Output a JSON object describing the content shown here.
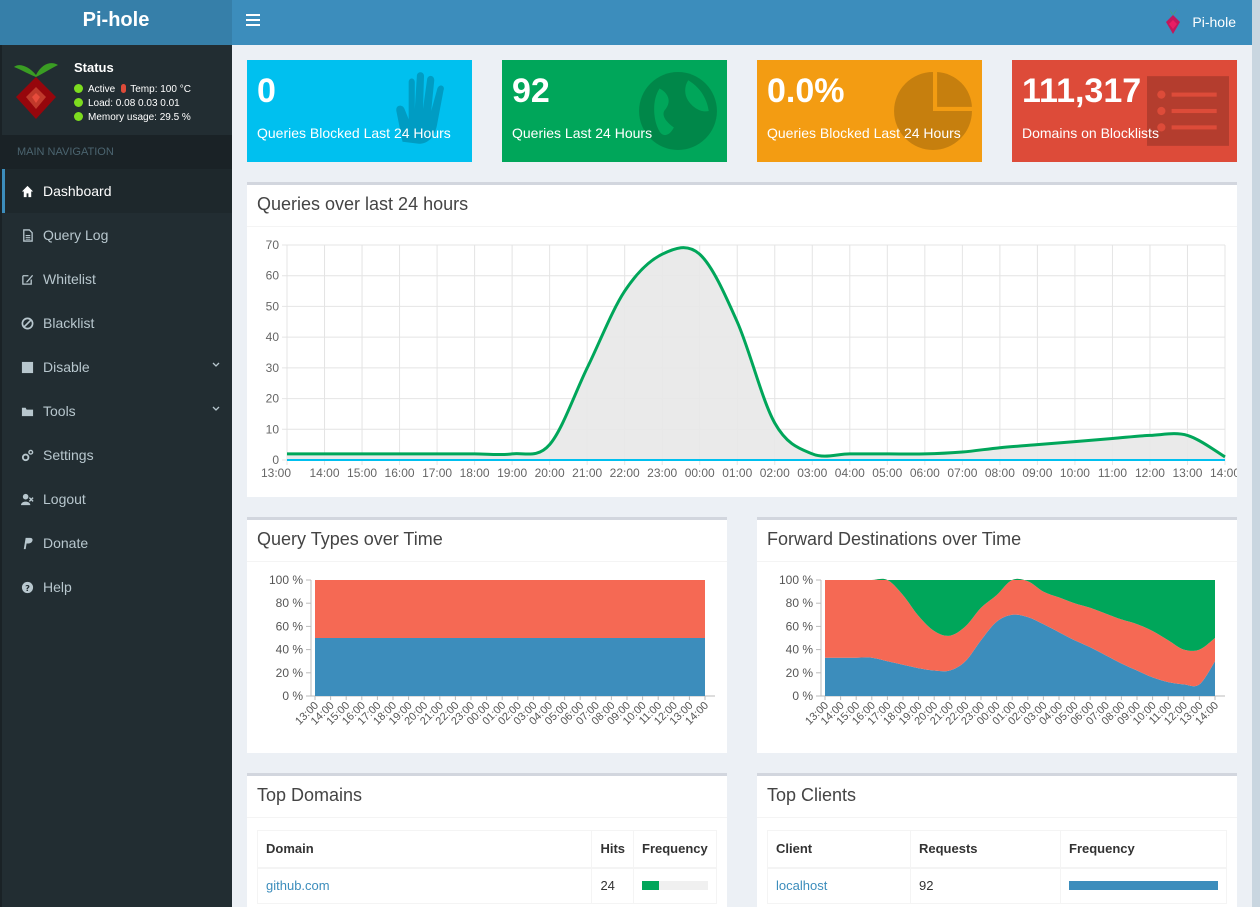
{
  "app": {
    "title": "Pi-hole",
    "brand_name": "Pi-hole"
  },
  "status": {
    "title": "Status",
    "active": "Active",
    "temp": "Temp: 100 °C",
    "load": "Load:  0.08  0.03  0.01",
    "memory": "Memory usage:  29.5 %"
  },
  "sidebar": {
    "header": "MAIN NAVIGATION",
    "items": [
      {
        "label": "Dashboard",
        "icon": "home-icon",
        "active": true
      },
      {
        "label": "Query Log",
        "icon": "file-icon"
      },
      {
        "label": "Whitelist",
        "icon": "edit-icon"
      },
      {
        "label": "Blacklist",
        "icon": "ban-icon"
      },
      {
        "label": "Disable",
        "icon": "stop-icon",
        "expandable": true
      },
      {
        "label": "Tools",
        "icon": "folder-icon",
        "expandable": true
      },
      {
        "label": "Settings",
        "icon": "gears-icon"
      },
      {
        "label": "Logout",
        "icon": "user-times-icon"
      },
      {
        "label": "Donate",
        "icon": "paypal-icon"
      },
      {
        "label": "Help",
        "icon": "question-icon"
      }
    ]
  },
  "stats": [
    {
      "value": "0",
      "label": "Queries Blocked Last 24 Hours",
      "color": "#00c0ef",
      "icon": "hand-icon"
    },
    {
      "value": "92",
      "label": "Queries Last 24 Hours",
      "color": "#00a65a",
      "icon": "globe-icon"
    },
    {
      "value": "0.0%",
      "label": "Queries Blocked Last 24 Hours",
      "color": "#f39c12",
      "icon": "pie-chart-icon"
    },
    {
      "value": "111,317",
      "label": "Domains on Blocklists",
      "color": "#dd4b39",
      "icon": "list-icon"
    }
  ],
  "boxes": {
    "queries_title": "Query Types over Time",
    "queries24_title": "Queries over last 24 hours",
    "forward_title": "Forward Destinations over Time",
    "top_domains_title": "Top Domains",
    "top_clients_title": "Top Clients"
  },
  "top_domains": {
    "headers": [
      "Domain",
      "Hits",
      "Frequency"
    ],
    "rows": [
      {
        "domain": "github.com",
        "hits": "24",
        "frequency": 0.25
      }
    ]
  },
  "top_clients": {
    "headers": [
      "Client",
      "Requests",
      "Frequency"
    ],
    "rows": [
      {
        "client": "localhost",
        "requests": "92",
        "frequency": 1.0
      }
    ]
  },
  "chart_data": [
    {
      "type": "area",
      "ylim": [
        0,
        70
      ],
      "yticks": [
        0,
        10,
        20,
        30,
        40,
        50,
        60,
        70
      ],
      "categories": [
        "13:00",
        "14:00",
        "15:00",
        "16:00",
        "17:00",
        "18:00",
        "19:00",
        "20:00",
        "21:00",
        "22:00",
        "23:00",
        "00:00",
        "01:00",
        "02:00",
        "03:00",
        "04:00",
        "05:00",
        "06:00",
        "07:00",
        "08:00",
        "09:00",
        "10:00",
        "11:00",
        "12:00",
        "13:00",
        "14:00"
      ],
      "series": [
        {
          "color": "#00a65a",
          "fill": "#e8e8e8",
          "values": [
            2,
            2,
            2,
            2,
            2,
            2,
            2,
            5,
            30,
            55,
            67,
            67,
            45,
            12,
            2,
            2,
            2,
            2,
            2.6,
            4,
            5,
            6,
            7,
            8,
            8,
            1
          ]
        },
        {
          "color": "#00c0ef",
          "values": [
            0,
            0,
            0,
            0,
            0,
            0,
            0,
            0,
            0,
            0,
            0,
            0,
            0,
            0,
            0,
            0,
            0,
            0,
            0,
            0,
            0,
            0,
            0,
            0,
            0,
            0
          ]
        }
      ]
    },
    {
      "type": "area",
      "ylim": [
        0,
        100
      ],
      "yticks": [
        "0 %",
        "20 %",
        "40 %",
        "60 %",
        "80 %",
        "100 %"
      ],
      "categories": [
        "13:00",
        "14:00",
        "15:00",
        "16:00",
        "17:00",
        "18:00",
        "19:00",
        "20:00",
        "21:00",
        "22:00",
        "23:00",
        "00:00",
        "01:00",
        "02:00",
        "03:00",
        "04:00",
        "05:00",
        "06:00",
        "07:00",
        "08:00",
        "09:00",
        "10:00",
        "11:00",
        "12:00",
        "13:00",
        "14:00"
      ],
      "series": [
        {
          "color": "#3c8dbc",
          "values": [
            50,
            50,
            50,
            50,
            50,
            50,
            50,
            50,
            50,
            50,
            50,
            50,
            50,
            50,
            50,
            50,
            50,
            50,
            50,
            50,
            50,
            50,
            50,
            50,
            50,
            50
          ]
        },
        {
          "color": "#f56954",
          "values": [
            50,
            50,
            50,
            50,
            50,
            50,
            50,
            50,
            50,
            50,
            50,
            50,
            50,
            50,
            50,
            50,
            50,
            50,
            50,
            50,
            50,
            50,
            50,
            50,
            50,
            50
          ]
        }
      ]
    },
    {
      "type": "area",
      "ylim": [
        0,
        100
      ],
      "yticks": [
        "0 %",
        "20 %",
        "40 %",
        "60 %",
        "80 %",
        "100 %"
      ],
      "categories": [
        "13:00",
        "14:00",
        "15:00",
        "16:00",
        "17:00",
        "18:00",
        "19:00",
        "20:00",
        "21:00",
        "22:00",
        "23:00",
        "00:00",
        "01:00",
        "02:00",
        "03:00",
        "04:00",
        "05:00",
        "06:00",
        "07:00",
        "08:00",
        "09:00",
        "10:00",
        "11:00",
        "12:00",
        "13:00",
        "14:00"
      ],
      "series": [
        {
          "color": "#3c8dbc",
          "values": [
            33,
            33,
            33,
            33,
            30,
            27,
            24,
            22,
            22,
            30,
            48,
            64,
            70,
            68,
            62,
            55,
            48,
            42,
            35,
            28,
            22,
            16,
            12,
            10,
            10,
            30
          ]
        },
        {
          "color": "#f56954",
          "values": [
            67,
            67,
            67,
            67,
            70,
            60,
            45,
            34,
            30,
            30,
            28,
            23,
            30,
            31,
            28,
            30,
            32,
            34,
            36,
            38,
            40,
            40,
            36,
            30,
            30,
            20
          ]
        },
        {
          "color": "#00a65a",
          "values": [
            0,
            0,
            0,
            0,
            0,
            13,
            31,
            44,
            48,
            40,
            24,
            13,
            0,
            1,
            10,
            15,
            20,
            24,
            29,
            34,
            38,
            44,
            52,
            60,
            60,
            50
          ]
        }
      ]
    }
  ]
}
